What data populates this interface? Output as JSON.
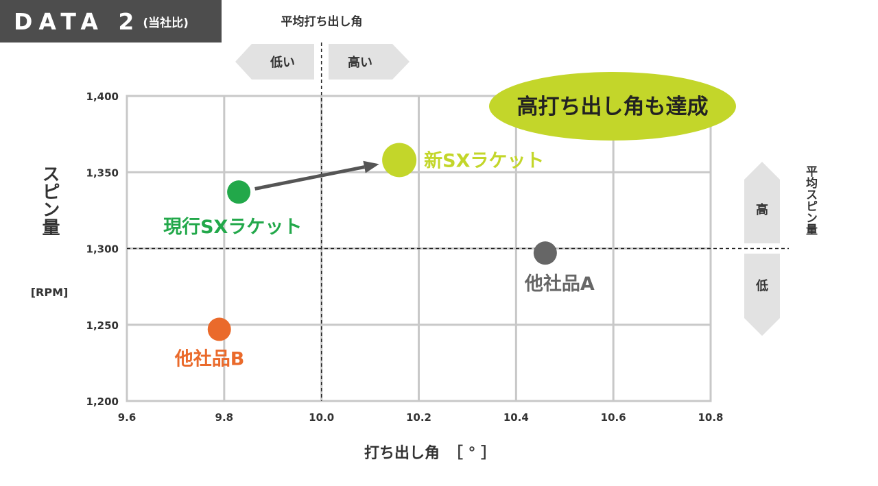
{
  "header": {
    "title": "DATA 2",
    "subtitle": "(当社比)"
  },
  "chart_data": {
    "type": "scatter",
    "title": "",
    "xlabel": "打ち出し角",
    "xunit": "［ ° ］",
    "ylabel": "スピン量",
    "yunit": "[RPM]",
    "xlim": [
      9.6,
      10.8
    ],
    "ylim": [
      1200,
      1400
    ],
    "x_ticks": [
      {
        "value": 9.6,
        "label": "9.6"
      },
      {
        "value": 9.8,
        "label": "9.8"
      },
      {
        "value": 10.0,
        "label": "10.0"
      },
      {
        "value": 10.2,
        "label": "10.2"
      },
      {
        "value": 10.4,
        "label": "10.4"
      },
      {
        "value": 10.6,
        "label": "10.6"
      },
      {
        "value": 10.8,
        "label": "10.8"
      }
    ],
    "y_ticks": [
      {
        "value": 1200,
        "label": "1,200"
      },
      {
        "value": 1250,
        "label": "1,250"
      },
      {
        "value": 1300,
        "label": "1,300"
      },
      {
        "value": 1350,
        "label": "1,350"
      },
      {
        "value": 1400,
        "label": "1,400"
      }
    ],
    "grid": true,
    "points": [
      {
        "name": "現行SXラケット",
        "x": 9.83,
        "y": 1337,
        "color": "#22a84a"
      },
      {
        "name": "新SXラケット",
        "x": 10.16,
        "y": 1358,
        "color": "#c3d62a"
      },
      {
        "name": "他社品A",
        "x": 10.46,
        "y": 1297,
        "color": "#666666"
      },
      {
        "name": "他社品B",
        "x": 9.79,
        "y": 1247,
        "color": "#ea6a2b"
      }
    ],
    "arrow": {
      "from": "現行SXラケット",
      "to": "新SXラケット",
      "color": "#555555"
    },
    "reference_lines": {
      "x": {
        "value": 10.0,
        "label": "平均打ち出し角",
        "low_label": "低い",
        "high_label": "高い"
      },
      "y": {
        "value": 1300,
        "label": "平均スピン量",
        "high_label": "高",
        "low_label": "低"
      }
    },
    "callout": {
      "text": "高打ち出し角も達成",
      "color": "#c3d62a"
    }
  }
}
